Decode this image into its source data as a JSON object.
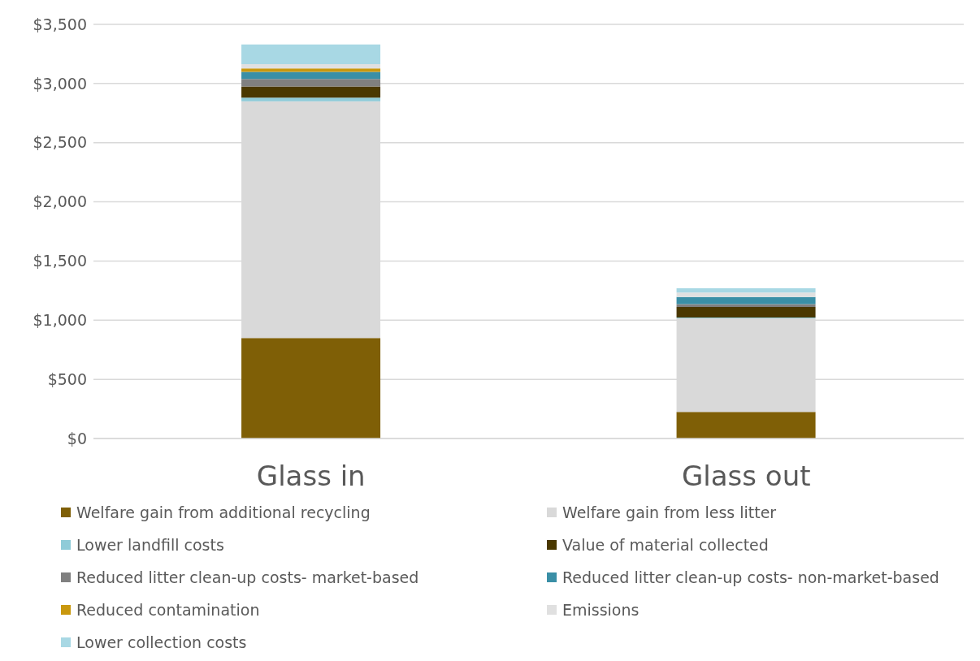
{
  "chart_data": {
    "type": "bar",
    "stacked": true,
    "categories": [
      "Glass in",
      "Glass out"
    ],
    "series": [
      {
        "name": "Welfare gain from additional recycling",
        "color": "#7f5f06",
        "values": [
          850,
          225
        ]
      },
      {
        "name": "Welfare gain from less litter",
        "color": "#d9d9d9",
        "values": [
          2000,
          790
        ]
      },
      {
        "name": "Lower landfill costs",
        "color": "#8fcbd8",
        "values": [
          30,
          7
        ]
      },
      {
        "name": "Value of material collected",
        "color": "#4a3800",
        "values": [
          95,
          90
        ]
      },
      {
        "name": "Reduced litter clean-up costs- market-based",
        "color": "#808080",
        "values": [
          63,
          24
        ]
      },
      {
        "name": "Reduced litter clean-up costs- non-market-based",
        "color": "#3a8fa6",
        "values": [
          60,
          60
        ]
      },
      {
        "name": "Reduced contamination",
        "color": "#c9980e",
        "values": [
          30,
          null
        ]
      },
      {
        "name": "Emissions",
        "color": "#e0e0e0",
        "values": [
          35,
          38
        ]
      },
      {
        "name": "Lower collection costs",
        "color": "#a8d8e4",
        "values": [
          167,
          36
        ]
      }
    ],
    "ylim": [
      0,
      3500
    ],
    "yticks": [
      {
        "value": 0,
        "label": "$0"
      },
      {
        "value": 500,
        "label": "$500"
      },
      {
        "value": 1000,
        "label": "$1,000"
      },
      {
        "value": 1500,
        "label": "$1,500"
      },
      {
        "value": 2000,
        "label": "$2,000"
      },
      {
        "value": 2500,
        "label": "$2,500"
      },
      {
        "value": 3000,
        "label": "$3,000"
      },
      {
        "value": 3500,
        "label": "$3,500"
      }
    ],
    "grid": "y",
    "legend": "bottom"
  }
}
